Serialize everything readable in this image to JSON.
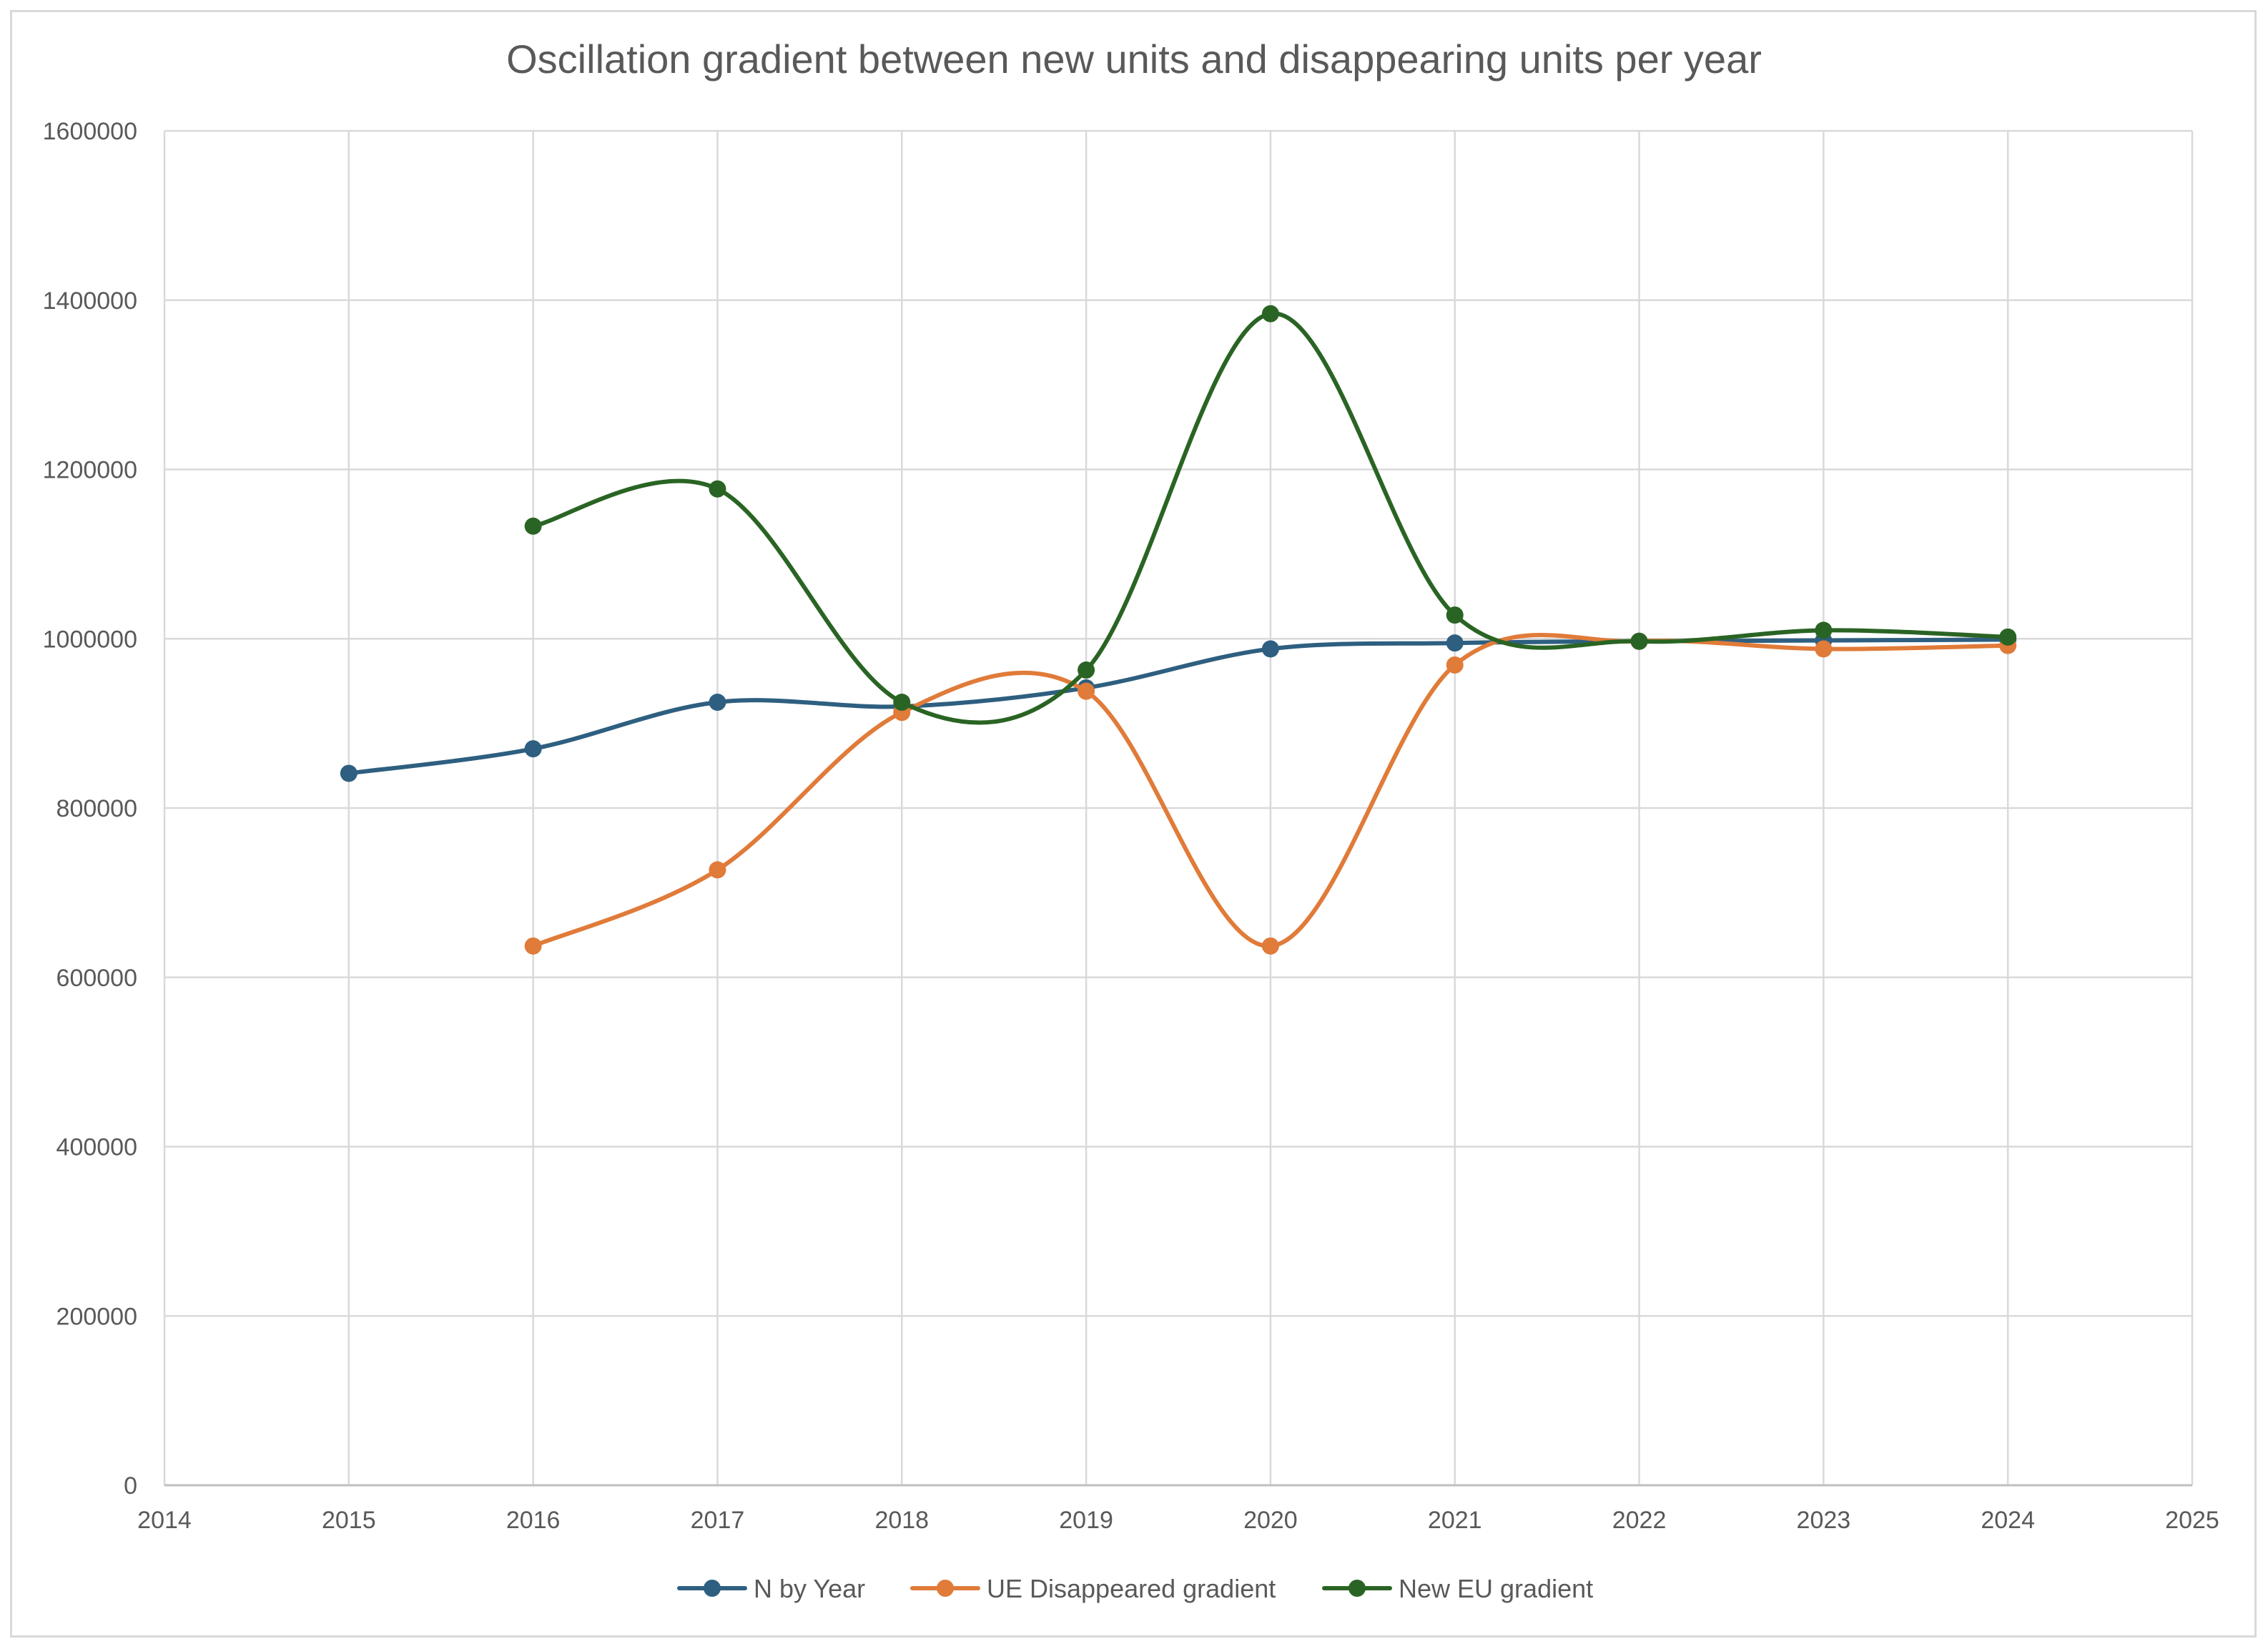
{
  "chart_data": {
    "type": "line",
    "smooth": true,
    "title": "Oscillation gradient between new units and disappearing units per year",
    "xlabel": "",
    "ylabel": "",
    "xlim": [
      2014,
      2025
    ],
    "ylim": [
      0,
      1600000
    ],
    "x_ticks": [
      2014,
      2015,
      2016,
      2017,
      2018,
      2019,
      2020,
      2021,
      2022,
      2023,
      2024,
      2025
    ],
    "y_ticks": [
      0,
      200000,
      400000,
      600000,
      800000,
      1000000,
      1200000,
      1400000,
      1600000
    ],
    "grid": true,
    "legend_position": "bottom",
    "series": [
      {
        "name": "N by Year",
        "color": "#2e5f80",
        "x": [
          2015,
          2016,
          2017,
          2018,
          2019,
          2020,
          2021,
          2022,
          2023,
          2024
        ],
        "values": [
          841000,
          870000,
          925000,
          920000,
          942000,
          988000,
          995000,
          997000,
          998000,
          999000
        ]
      },
      {
        "name": "UE Disappeared gradient",
        "color": "#e07b39",
        "x": [
          2016,
          2017,
          2018,
          2019,
          2020,
          2021,
          2022,
          2023,
          2024
        ],
        "values": [
          637000,
          727000,
          913000,
          938000,
          637000,
          969000,
          997000,
          988000,
          992000
        ]
      },
      {
        "name": "New EU gradient",
        "color": "#2a6424",
        "x": [
          2016,
          2017,
          2018,
          2019,
          2020,
          2021,
          2022,
          2023,
          2024
        ],
        "values": [
          1133000,
          1177000,
          925000,
          963000,
          1384000,
          1028000,
          997000,
          1010000,
          1002000
        ]
      }
    ]
  }
}
